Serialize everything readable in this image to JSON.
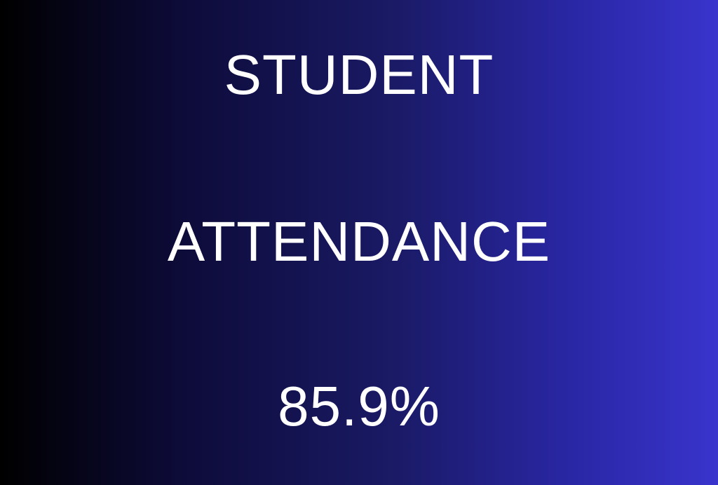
{
  "title_line1": "STUDENT",
  "title_line2": "ATTENDANCE",
  "value": "85.9%",
  "colors": {
    "gradient_start": "#000000",
    "gradient_end": "#3934cc",
    "text": "#ffffff"
  }
}
